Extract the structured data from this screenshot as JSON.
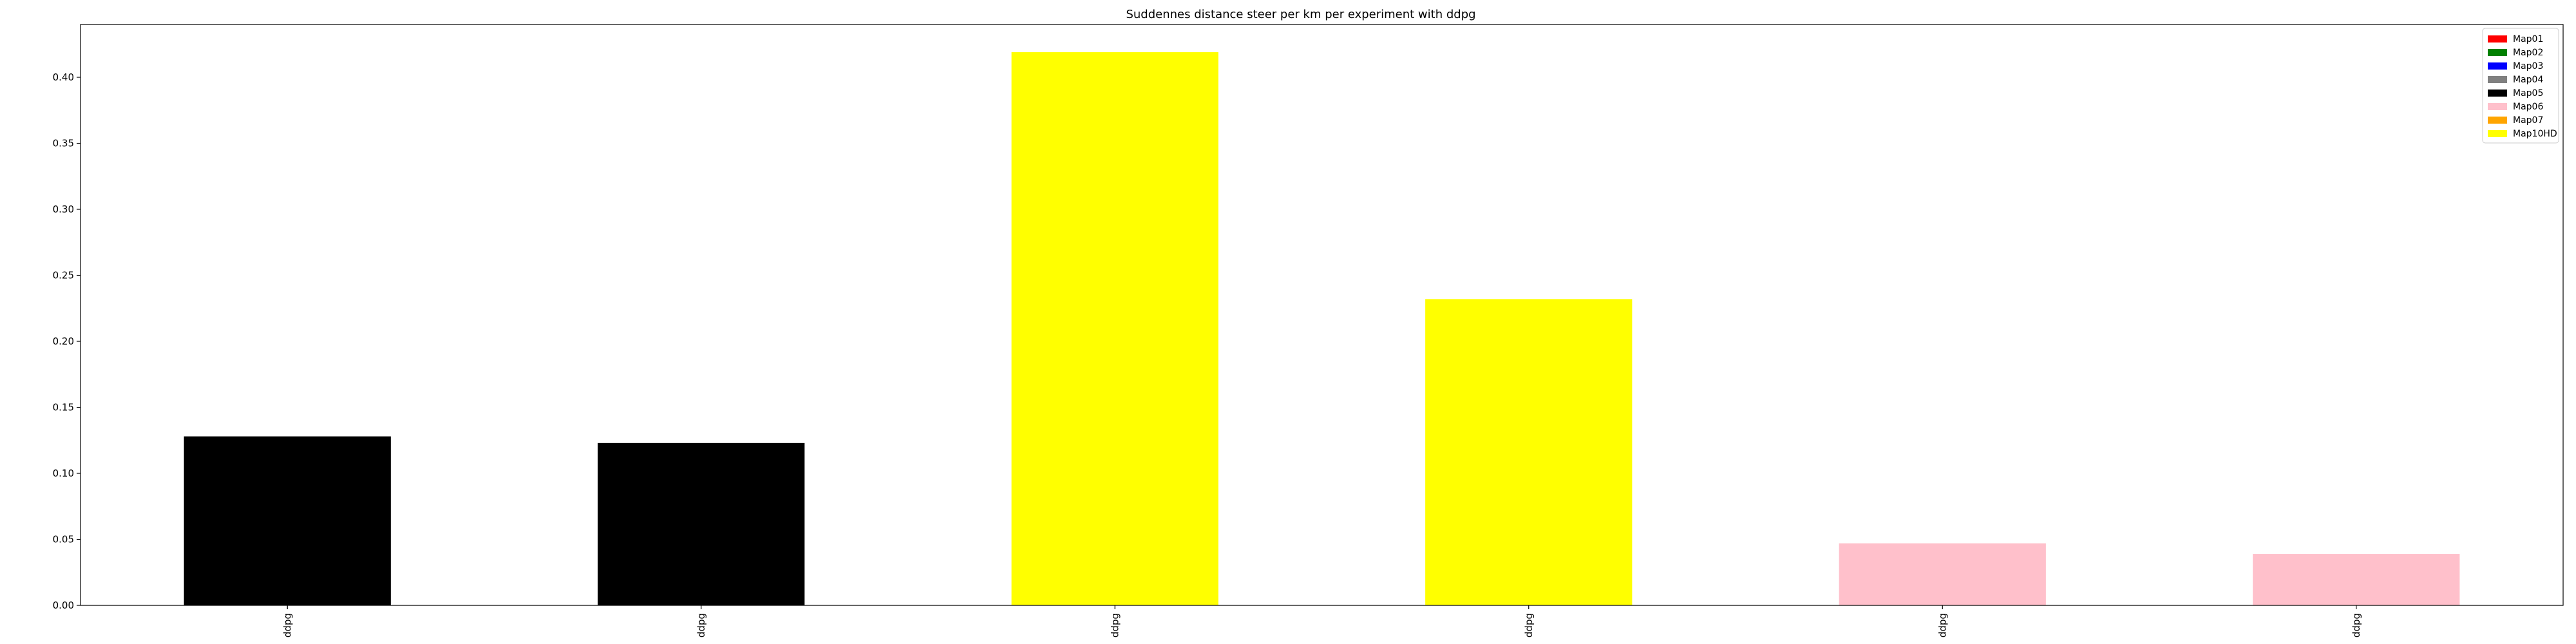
{
  "chart_data": {
    "type": "bar",
    "title": "Suddennes distance steer per km per experiment with ddpg",
    "xlabel": "",
    "ylabel": "",
    "categories": [
      "ddpg",
      "ddpg",
      "ddpg",
      "ddpg",
      "ddpg",
      "ddpg"
    ],
    "values": [
      0.128,
      0.123,
      0.419,
      0.232,
      0.047,
      0.039
    ],
    "bar_series": [
      "Map05",
      "Map05",
      "Map10HD",
      "Map10HD",
      "Map06",
      "Map06"
    ],
    "ylim": [
      0,
      0.44
    ],
    "yticks": [
      "0.00",
      "0.05",
      "0.10",
      "0.15",
      "0.20",
      "0.25",
      "0.30",
      "0.35",
      "0.40"
    ],
    "grid": false,
    "legend_position": "top-right",
    "legend": [
      {
        "name": "Map01",
        "color": "#ff0000"
      },
      {
        "name": "Map02",
        "color": "#008000"
      },
      {
        "name": "Map03",
        "color": "#0000ff"
      },
      {
        "name": "Map04",
        "color": "#808080"
      },
      {
        "name": "Map05",
        "color": "#000000"
      },
      {
        "name": "Map06",
        "color": "#ffc0cb"
      },
      {
        "name": "Map07",
        "color": "#ffa500"
      },
      {
        "name": "Map10HD",
        "color": "#ffff00"
      }
    ]
  }
}
